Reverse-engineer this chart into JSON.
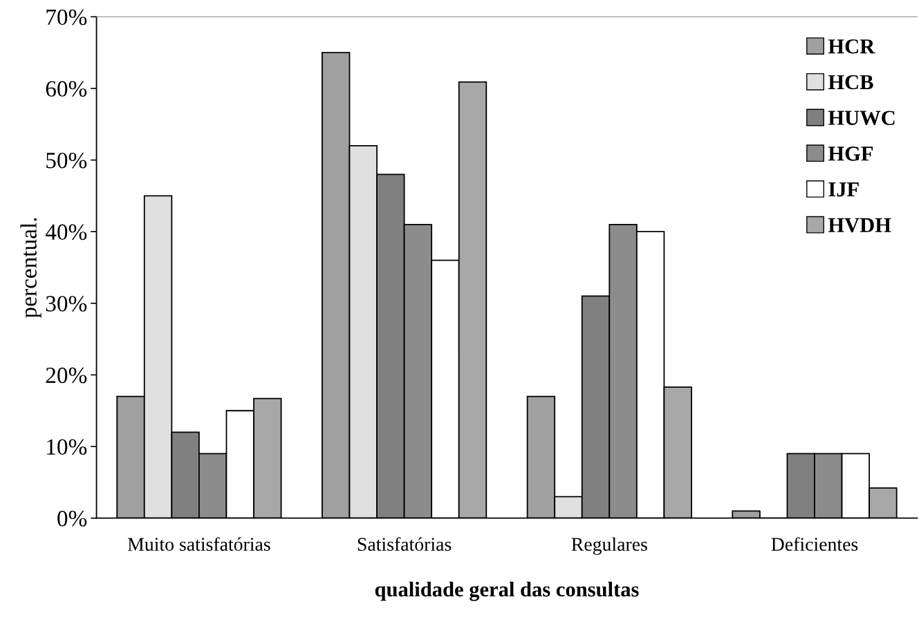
{
  "chart_data": {
    "type": "bar",
    "xlabel": "qualidade geral das consultas",
    "ylabel": "percentual.",
    "categories": [
      "Muito satisfatórias",
      "Satisfatórias",
      "Regulares",
      "Deficientes"
    ],
    "series": [
      {
        "name": "HCR",
        "color": "#a0a0a0",
        "values": [
          17,
          65,
          17,
          1
        ]
      },
      {
        "name": "HCB",
        "color": "#e0e0e0",
        "values": [
          45,
          52,
          3,
          0
        ]
      },
      {
        "name": "HUWC",
        "color": "#808080",
        "values": [
          12,
          48,
          31,
          9
        ]
      },
      {
        "name": "HGF",
        "color": "#8c8c8c",
        "values": [
          9,
          41,
          41,
          9
        ]
      },
      {
        "name": "IJF",
        "color": "#ffffff",
        "values": [
          15,
          36,
          40,
          9
        ]
      },
      {
        "name": "HVDH",
        "color": "#a8a8a8",
        "values": [
          16.7,
          60.9,
          18.3,
          4.2
        ]
      }
    ],
    "ylim": [
      0,
      70
    ],
    "yticks": [
      {
        "value": 0,
        "label": "0%"
      },
      {
        "value": 10,
        "label": "10%"
      },
      {
        "value": 20,
        "label": "20%"
      },
      {
        "value": 30,
        "label": "30%"
      },
      {
        "value": 40,
        "label": "40%"
      },
      {
        "value": 50,
        "label": "50%"
      },
      {
        "value": 60,
        "label": "60%"
      },
      {
        "value": 70,
        "label": "70%"
      }
    ],
    "legend": "top right",
    "grid": false
  }
}
